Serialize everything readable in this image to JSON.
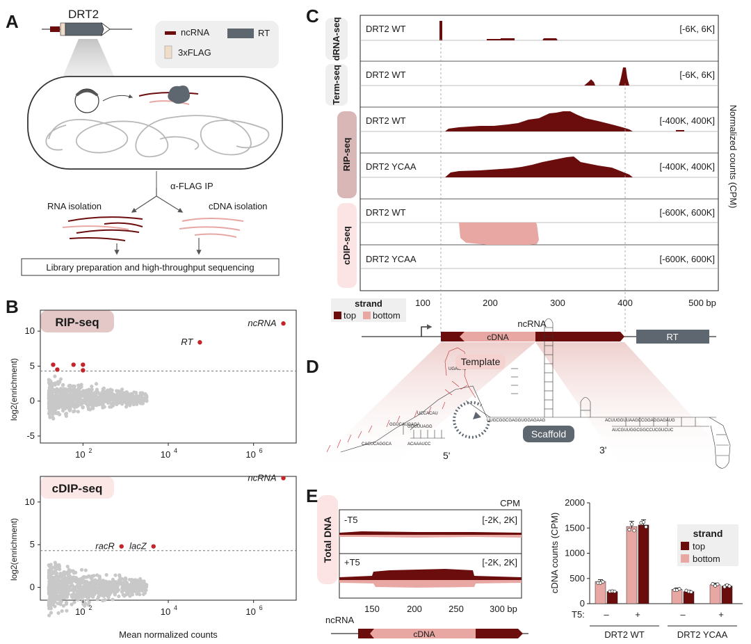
{
  "panels": {
    "A": {
      "letter": "A",
      "construct": "DRT2",
      "legend": {
        "ncrna": "ncRNA",
        "rt": "RT",
        "flag": "3xFLAG"
      },
      "ip": "α-FLAG IP",
      "rna_isolation": "RNA isolation",
      "cdna_isolation": "cDNA isolation",
      "library": "Library preparation and high-throughput sequencing"
    },
    "B": {
      "letter": "B",
      "xlabel": "Mean normalized counts",
      "ylabel": "log2(enrichment)",
      "rip": {
        "title": "RIP-seq",
        "labels": {
          "ncrna": "ncRNA",
          "rt": "RT"
        }
      },
      "cdip": {
        "title": "cDIP-seq",
        "labels": {
          "ncrna": "ncRNA",
          "racr": "racR",
          "lacz": "lacZ"
        }
      }
    },
    "C": {
      "letter": "C",
      "right_label": "Normalized counts (CPM)",
      "groups": [
        "dRNA-seq",
        "Term-seq",
        "RIP-seq",
        "cDIP-seq"
      ],
      "tracks": [
        {
          "name": "DRT2 WT",
          "range": "[-6K, 6K]"
        },
        {
          "name": "DRT2 WT",
          "range": "[-6K, 6K]"
        },
        {
          "name": "DRT2 WT",
          "range": "[-400K, 400K]"
        },
        {
          "name": "DRT2 YCAA",
          "range": "[-400K, 400K]"
        },
        {
          "name": "DRT2 WT",
          "range": "[-600K, 600K]"
        },
        {
          "name": "DRT2 YCAA",
          "range": "[-600K, 600K]"
        }
      ],
      "x_ticks": [
        "100",
        "200",
        "300",
        "400",
        "500 bp"
      ],
      "strand_title": "strand",
      "strand_top": "top",
      "strand_bottom": "bottom",
      "gene_ncrna": "ncRNA",
      "gene_cdna": "cDNA",
      "gene_rt": "RT"
    },
    "D": {
      "letter": "D",
      "template": "Template",
      "scaffold": "Scaffold",
      "five_prime": "5'",
      "three_prime": "3'"
    },
    "E": {
      "letter": "E",
      "side_label": "Total DNA",
      "cpm": "CPM",
      "minus_t5": "-T5",
      "plus_t5": "+T5",
      "range": "[-2K, 2K]",
      "x_ticks": [
        "150",
        "200",
        "250",
        "300 bp"
      ],
      "ncrna": "ncRNA",
      "cdna": "cDNA",
      "ylabel": "cDNA counts (CPM)",
      "t5_label": "T5:",
      "minus": "–",
      "plus": "+",
      "legend_title": "strand",
      "legend_top": "top",
      "legend_bottom": "bottom"
    }
  },
  "colors": {
    "dark": "#6b0d0d",
    "light": "#e8a7a2",
    "grey": "#5e6670",
    "point": "#c8c8c8",
    "red": "#c3262a"
  },
  "chart_data": [
    {
      "type": "scatter",
      "title": "RIP-seq",
      "xlabel": "Mean normalized counts",
      "ylabel": "log2(enrichment)",
      "x_scale": "log10",
      "xlim": [
        10,
        10000000
      ],
      "ylim": [
        -6,
        13
      ],
      "y_ticks": [
        -5,
        0,
        5,
        10
      ],
      "x_ticks": [
        "10^2",
        "10^4",
        "10^6"
      ],
      "threshold": 4.3,
      "highlighted": [
        {
          "label": "ncRNA",
          "x": 5000000,
          "y": 11.1
        },
        {
          "label": "RT",
          "x": 55000,
          "y": 8.4
        },
        {
          "label": "",
          "x": 20,
          "y": 5.2
        },
        {
          "label": "",
          "x": 60,
          "y": 5.2
        },
        {
          "label": "",
          "x": 100,
          "y": 5.2
        },
        {
          "label": "",
          "x": 25,
          "y": 4.5
        },
        {
          "label": "",
          "x": 100,
          "y": 4.4
        }
      ]
    },
    {
      "type": "scatter",
      "title": "cDIP-seq",
      "xlabel": "Mean normalized counts",
      "ylabel": "log2(enrichment)",
      "x_scale": "log10",
      "xlim": [
        10,
        10000000
      ],
      "ylim": [
        -1.5,
        13
      ],
      "y_ticks": [
        0,
        5,
        10
      ],
      "x_ticks": [
        "10^2",
        "10^4",
        "10^6"
      ],
      "threshold": 4.3,
      "highlighted": [
        {
          "label": "ncRNA",
          "x": 5000000,
          "y": 12.8
        },
        {
          "label": "racR",
          "x": 800,
          "y": 4.8
        },
        {
          "label": "lacZ",
          "x": 4500,
          "y": 4.8
        }
      ]
    },
    {
      "type": "bar",
      "title": "",
      "ylabel": "cDNA counts (CPM)",
      "ylim": [
        0,
        2000
      ],
      "y_ticks": [
        0,
        500,
        1000,
        1500,
        2000
      ],
      "groups": [
        "DRT2 WT",
        "DRT2 YCAA"
      ],
      "t5": [
        "–",
        "+",
        "–",
        "+"
      ],
      "series": [
        {
          "name": "top",
          "values": [
            240,
            1560,
            240,
            350
          ]
        },
        {
          "name": "bottom",
          "values": [
            440,
            1530,
            285,
            375
          ]
        }
      ]
    }
  ]
}
